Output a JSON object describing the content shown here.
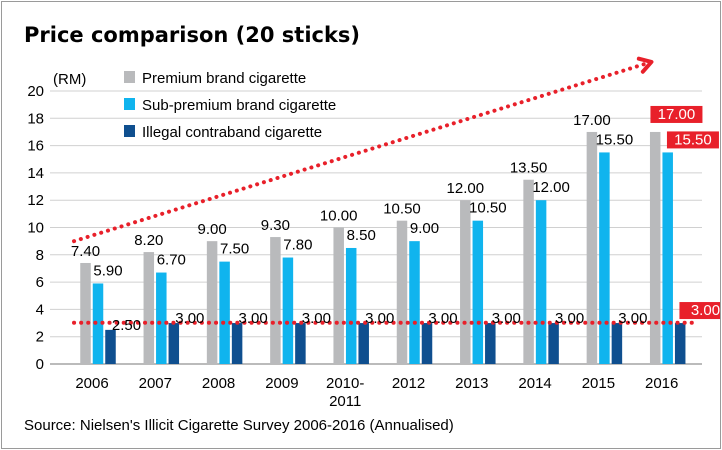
{
  "chart_data": {
    "type": "bar",
    "title": "Price comparison (20 sticks)",
    "unit_label": "(RM)",
    "categories": [
      "2006",
      "2007",
      "2008",
      "2009",
      "2010-2011",
      "2012",
      "2013",
      "2014",
      "2015",
      "2016"
    ],
    "category_labels": [
      [
        "2006"
      ],
      [
        "2007"
      ],
      [
        "2008"
      ],
      [
        "2009"
      ],
      [
        "2010-",
        "2011"
      ],
      [
        "2012"
      ],
      [
        "2013"
      ],
      [
        "2014"
      ],
      [
        "2015"
      ],
      [
        "2016"
      ]
    ],
    "ylim": [
      0,
      20
    ],
    "yticks": [
      0,
      2,
      4,
      6,
      8,
      10,
      12,
      14,
      16,
      18,
      20
    ],
    "grid": true,
    "legend_position": "top-left",
    "series": [
      {
        "name": "Premium brand cigarette",
        "color": "#b9babc",
        "values": [
          7.4,
          8.2,
          9.0,
          9.3,
          10.0,
          10.5,
          12.0,
          13.5,
          17.0,
          17.0
        ],
        "labels": [
          "7.40",
          "8.20",
          "9.00",
          "9.30",
          "10.00",
          "10.50",
          "12.00",
          "13.50",
          "17.00",
          "17.00"
        ]
      },
      {
        "name": "Sub-premium brand cigarette",
        "color": "#10b4ee",
        "values": [
          5.9,
          6.7,
          7.5,
          7.8,
          8.5,
          9.0,
          10.5,
          12.0,
          15.5,
          15.5
        ],
        "labels": [
          "5.90",
          "6.70",
          "7.50",
          "7.80",
          "8.50",
          "9.00",
          "10.50",
          "12.00",
          "15.50",
          "15.50"
        ]
      },
      {
        "name": "Illegal contraband cigarette",
        "color": "#0f4f8f",
        "values": [
          2.5,
          3.0,
          3.0,
          3.0,
          3.0,
          3.0,
          3.0,
          3.0,
          3.0,
          3.0
        ],
        "labels": [
          "2.50",
          "3.00",
          "3.00",
          "3.00",
          "3.00",
          "3.00",
          "3.00",
          "3.00",
          "3.00",
          "3.00"
        ]
      }
    ],
    "highlight_color": "#e8202a",
    "trend_lines": [
      {
        "name": "rising-trend",
        "from": [
          "2006",
          9
        ],
        "to": [
          "2016",
          22
        ],
        "arrow": true
      },
      {
        "name": "flat-trend",
        "from": [
          "2006",
          2
        ],
        "to": [
          "2016",
          2
        ],
        "arrow": false
      }
    ]
  },
  "source_text": "Source: Nielsen's Illicit Cigarette Survey 2006-2016 (Annualised)"
}
